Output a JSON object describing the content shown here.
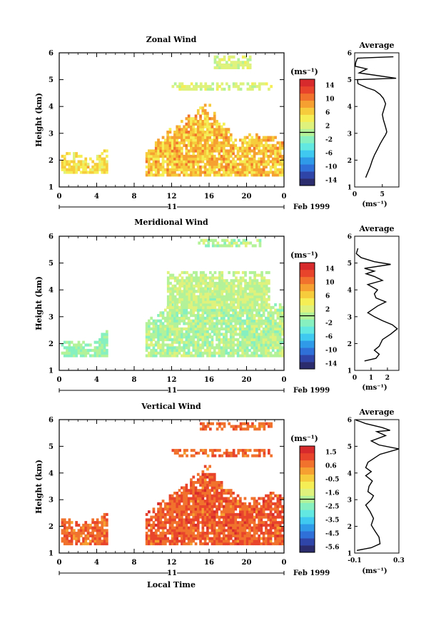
{
  "chart_data": [
    {
      "type": "heatmap",
      "title": "Zonal Wind",
      "ylabel": "Height (km)",
      "ylim": [
        1,
        6
      ],
      "xlim": [
        0,
        24
      ],
      "xticks": [
        "0",
        "4",
        "8",
        "12",
        "16",
        "20",
        "0"
      ],
      "yticks": [
        "1",
        "2",
        "3",
        "4",
        "5",
        "6"
      ],
      "date_label": "11",
      "month_label": "Feb 1999",
      "colorbar": {
        "unit": "(ms⁻¹)",
        "ticks": [
          "14",
          "10",
          "6",
          "2",
          "-2",
          "-6",
          "-10",
          "-14"
        ],
        "range": [
          -16,
          16
        ]
      },
      "clusters": [
        {
          "x": [
            0.2,
            5.0
          ],
          "ymin": 1.5,
          "ymax": [
            2.3,
            2.2,
            2.0,
            2.4
          ],
          "value": 5,
          "spread": 2.5
        },
        {
          "x": [
            9.2,
            23.9
          ],
          "ymin": 1.4,
          "ymax": [
            2.3,
            2.9,
            3.3,
            3.7,
            4.1,
            3.4,
            2.7,
            3.0,
            2.8,
            2.9
          ],
          "value": 7,
          "spread": 3
        },
        {
          "x": [
            12.0,
            22.6
          ],
          "ymin": 4.6,
          "ymax": [
            4.8,
            4.8
          ],
          "value": 2,
          "spread": 1.5
        },
        {
          "x": [
            16.5,
            20.5
          ],
          "ymin": 5.4,
          "ymax": [
            5.8,
            5.8
          ],
          "value": 2,
          "spread": 1.5
        }
      ],
      "average": {
        "title": "Average",
        "xlabel": "(ms⁻¹)",
        "xlim": [
          0,
          8
        ],
        "xticks": [
          "0",
          "5"
        ],
        "x": [
          2,
          2.3,
          2.8,
          3.2,
          3.6,
          4.1,
          4.6,
          5.0,
          5.3,
          5.6,
          5.8,
          5.7,
          5.5,
          5.2,
          5.0,
          5.3,
          5.6,
          5.2,
          4.6,
          3.6,
          2.2,
          0.6,
          0.5,
          7.5,
          0.8,
          2.2,
          0.1,
          0.2,
          0.5,
          7.0
        ],
        "y": [
          1.35,
          1.5,
          1.75,
          2.0,
          2.2,
          2.4,
          2.6,
          2.75,
          2.85,
          2.95,
          3.05,
          3.15,
          3.3,
          3.5,
          3.7,
          3.9,
          4.1,
          4.3,
          4.45,
          4.6,
          4.7,
          4.85,
          5.0,
          5.05,
          5.25,
          5.4,
          5.5,
          5.65,
          5.8,
          5.85
        ]
      }
    },
    {
      "type": "heatmap",
      "title": "Meridional Wind",
      "ylabel": "Height (km)",
      "ylim": [
        1,
        6
      ],
      "xlim": [
        0,
        24
      ],
      "xticks": [
        "0",
        "4",
        "8",
        "12",
        "16",
        "20",
        "0"
      ],
      "yticks": [
        "1",
        "2",
        "3",
        "4",
        "5",
        "6"
      ],
      "date_label": "11",
      "month_label": "Feb 1999",
      "colorbar": {
        "unit": "(ms⁻¹)",
        "ticks": [
          "14",
          "10",
          "6",
          "2",
          "-2",
          "-6",
          "-10",
          "-14"
        ],
        "range": [
          -16,
          16
        ]
      },
      "clusters": [
        {
          "x": [
            0.2,
            5.0
          ],
          "ymin": 1.5,
          "ymax": [
            2.0,
            2.1,
            2.0,
            2.5
          ],
          "value": -1,
          "spread": 2
        },
        {
          "x": [
            9.2,
            23.9
          ],
          "ymin": 1.5,
          "ymax": [
            2.8,
            3.2,
            3.6,
            3.9,
            4.1,
            4.0,
            3.7,
            3.5,
            3.3,
            3.6
          ],
          "value": 0,
          "spread": 2
        },
        {
          "x": [
            11.5,
            22.5
          ],
          "ymin": 3.3,
          "ymax": [
            4.7,
            4.6
          ],
          "value": 1,
          "spread": 2
        },
        {
          "x": [
            14.8,
            21.5
          ],
          "ymin": 5.6,
          "ymax": [
            5.8,
            5.8
          ],
          "value": 0,
          "spread": 2
        }
      ],
      "average": {
        "title": "Average",
        "xlabel": "(ms⁻¹)",
        "xlim": [
          0,
          2.7
        ],
        "xticks": [
          "0",
          "1",
          "2"
        ],
        "x": [
          0.6,
          1.3,
          1.5,
          1.2,
          1.5,
          1.7,
          2.2,
          2.6,
          2.3,
          1.7,
          1.2,
          0.8,
          1.4,
          1.9,
          1.3,
          1.2,
          1.4,
          0.8,
          1.7,
          1.2,
          0.7,
          1.2,
          0.6,
          2.2,
          1.2,
          0.4,
          0.1,
          0.2
        ],
        "y": [
          1.35,
          1.45,
          1.6,
          1.75,
          1.9,
          2.15,
          2.35,
          2.55,
          2.7,
          2.85,
          3.0,
          3.15,
          3.4,
          3.55,
          3.7,
          3.85,
          4.0,
          4.2,
          4.35,
          4.5,
          4.6,
          4.7,
          4.8,
          4.95,
          5.05,
          5.2,
          5.35,
          5.55
        ]
      }
    },
    {
      "type": "heatmap",
      "title": "Vertical Wind",
      "ylabel": "Height (km)",
      "xlabel": "Local Time",
      "ylim": [
        1,
        6
      ],
      "xlim": [
        0,
        24
      ],
      "xticks": [
        "0",
        "4",
        "8",
        "12",
        "16",
        "20",
        "0"
      ],
      "yticks": [
        "1",
        "2",
        "3",
        "4",
        "5",
        "6"
      ],
      "date_label": "11",
      "month_label": "Feb 1999",
      "colorbar": {
        "unit": "(ms⁻¹)",
        "ticks": [
          "1.5",
          "0.6",
          "-0.5",
          "-1.6",
          "-2.5",
          "-3.5",
          "-4.5",
          "-5.6"
        ],
        "range": [
          -6.2,
          2.1
        ]
      },
      "clusters": [
        {
          "x": [
            0.2,
            5.0
          ],
          "ymin": 1.3,
          "ymax": [
            2.3,
            2.1,
            2.2,
            2.5
          ],
          "value": 0.8,
          "spread": 0.5
        },
        {
          "x": [
            9.2,
            23.9
          ],
          "ymin": 1.3,
          "ymax": [
            2.5,
            2.9,
            3.3,
            3.8,
            4.3,
            3.6,
            3.1,
            3.0,
            3.3,
            3.1
          ],
          "value": 1.0,
          "spread": 0.6
        },
        {
          "x": [
            12.0,
            23.0
          ],
          "ymin": 4.6,
          "ymax": [
            4.8,
            4.8
          ],
          "value": 0.8,
          "spread": 0.4
        },
        {
          "x": [
            15.0,
            23.0
          ],
          "ymin": 5.6,
          "ymax": [
            5.8,
            5.8
          ],
          "value": 0.8,
          "spread": 0.4
        }
      ],
      "average": {
        "title": "Average",
        "xlabel": "(ms⁻¹)",
        "xlim": [
          -0.1,
          0.3
        ],
        "xticks": [
          "-0.1",
          "0.3"
        ],
        "x": [
          -0.08,
          0.05,
          0.13,
          0.12,
          0.08,
          0.05,
          0.07,
          0.04,
          0.0,
          0.05,
          0.07,
          0.02,
          0.03,
          0.06,
          0.0,
          0.05,
          0.0,
          0.02,
          0.13,
          0.3,
          0.12,
          0.05,
          0.18,
          0.1,
          0.22,
          0.15,
          0.0,
          -0.05,
          -0.09
        ],
        "y": [
          1.1,
          1.2,
          1.35,
          1.6,
          1.85,
          2.05,
          2.3,
          2.55,
          2.8,
          3.0,
          3.15,
          3.3,
          3.5,
          3.7,
          3.9,
          4.05,
          4.2,
          4.4,
          4.7,
          4.9,
          5.05,
          5.2,
          5.4,
          5.55,
          5.6,
          5.7,
          5.85,
          5.93,
          5.98
        ]
      }
    }
  ]
}
